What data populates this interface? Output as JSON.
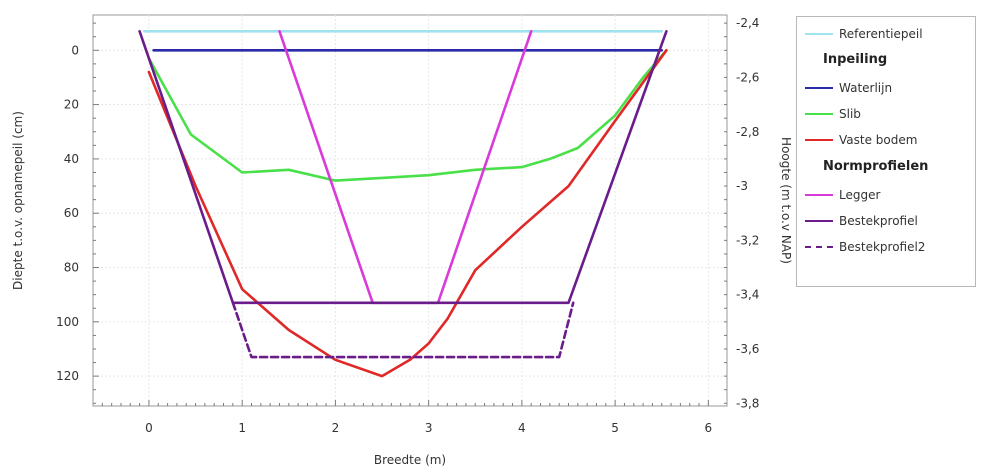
{
  "chart_data": {
    "type": "line",
    "xlabel": "Breedte (m)",
    "ylabel_left": "Diepte t.o.v. opnamepeil (cm)",
    "ylabel_right": "Hoogte (m t.o.v NAP)",
    "xlim": [
      -0.6,
      6.2
    ],
    "ylim_left": [
      131,
      -13
    ],
    "ylim_right": [
      -3.81,
      -2.37
    ],
    "x_ticks": [
      "0",
      "1",
      "2",
      "3",
      "4",
      "5",
      "6"
    ],
    "x_tick_values": [
      0,
      1,
      2,
      3,
      4,
      5,
      6
    ],
    "y_left_ticks": [
      "0",
      "20",
      "40",
      "60",
      "80",
      "100",
      "120"
    ],
    "y_left_tick_values": [
      0,
      20,
      40,
      60,
      80,
      100,
      120
    ],
    "y_right_ticks": [
      "-2,4",
      "-2,6",
      "-2,8",
      "-3",
      "-3,2",
      "-3,4",
      "-3,6",
      "-3,8"
    ],
    "y_right_tick_values": [
      -2.4,
      -2.6,
      -2.8,
      -3.0,
      -3.2,
      -3.4,
      -3.6,
      -3.8
    ],
    "grid": true,
    "legend_position": "right",
    "series": [
      {
        "name": "Referentiepeil",
        "color": "#9fe3ef",
        "dash": false,
        "x": [
          -0.05,
          5.5
        ],
        "y": [
          -7,
          -7
        ]
      },
      {
        "name": "Waterlijn",
        "color": "#2a2aa8",
        "dash": false,
        "x": [
          0.05,
          5.5
        ],
        "y": [
          0,
          0
        ]
      },
      {
        "name": "Slib",
        "color": "#4ae04a",
        "dash": false,
        "x": [
          0,
          0.45,
          1.0,
          1.5,
          2.0,
          2.5,
          3.0,
          3.5,
          4.0,
          4.3,
          4.6,
          5.0,
          5.3,
          5.55
        ],
        "y": [
          3,
          31,
          45,
          44,
          48,
          47,
          46,
          44,
          43,
          40,
          36,
          24,
          10,
          0
        ]
      },
      {
        "name": "Vaste bodem",
        "color": "#e02828",
        "dash": false,
        "x": [
          0,
          0.5,
          1.0,
          1.5,
          2.0,
          2.5,
          2.8,
          3.0,
          3.2,
          3.5,
          4.0,
          4.5,
          5.0,
          5.55
        ],
        "y": [
          8,
          50,
          88,
          103,
          114,
          120,
          114,
          108,
          99,
          81,
          65,
          50,
          26,
          0
        ]
      },
      {
        "name": "Legger",
        "color": "#d93ad9",
        "dash": false,
        "x": [
          1.4,
          2.4,
          3.1,
          4.1
        ],
        "y": [
          -7,
          93,
          93,
          -7
        ]
      },
      {
        "name": "Bestekprofiel",
        "color": "#6a1d8a",
        "dash": false,
        "x": [
          -0.1,
          0.9,
          4.5,
          5.55
        ],
        "y": [
          -7,
          93,
          93,
          -7
        ]
      },
      {
        "name": "Bestekprofiel2",
        "color": "#6a1d8a",
        "dash": true,
        "x": [
          0.9,
          1.1,
          4.4,
          4.55
        ],
        "y": [
          93,
          113,
          113,
          93
        ]
      }
    ]
  },
  "legend": {
    "items": [
      {
        "kind": "line",
        "label": "Referentiepeil",
        "color": "#9fe3ef",
        "dash": false
      },
      {
        "kind": "group",
        "label": "Inpeiling"
      },
      {
        "kind": "line",
        "label": "Waterlijn",
        "color": "#2a2aa8",
        "dash": false
      },
      {
        "kind": "line",
        "label": "Slib",
        "color": "#4ae04a",
        "dash": false
      },
      {
        "kind": "line",
        "label": "Vaste bodem",
        "color": "#e02828",
        "dash": false
      },
      {
        "kind": "group",
        "label": "Normprofielen"
      },
      {
        "kind": "line",
        "label": "Legger",
        "color": "#d93ad9",
        "dash": false
      },
      {
        "kind": "line",
        "label": "Bestekprofiel",
        "color": "#6a1d8a",
        "dash": false
      },
      {
        "kind": "line",
        "label": "Bestekprofiel2",
        "color": "#6a1d8a",
        "dash": true
      }
    ]
  }
}
